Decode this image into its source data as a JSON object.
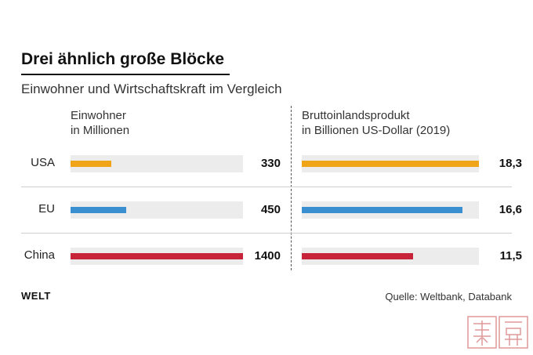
{
  "title": "Drei ähnlich große Blöcke",
  "subtitle": "Einwohner und Wirtschaftskraft im Vergleich",
  "brand": "WELT",
  "source": "Quelle: Weltbank, Databank",
  "colors": {
    "USA": "#f0a418",
    "EU": "#3a8fd1",
    "China": "#c7243a",
    "track": "#ececec"
  },
  "chart_data": [
    {
      "type": "bar",
      "orientation": "horizontal",
      "header_line1": "Einwohner",
      "header_line2": "in Millionen",
      "categories": [
        "USA",
        "EU",
        "China"
      ],
      "values": [
        330,
        450,
        1400
      ],
      "value_labels": [
        "330",
        "450",
        "1400"
      ],
      "xlim": [
        0,
        1400
      ]
    },
    {
      "type": "bar",
      "orientation": "horizontal",
      "header_line1": "Bruttoinlandsprodukt",
      "header_line2": "in Billionen US-Dollar (2019)",
      "categories": [
        "USA",
        "EU",
        "China"
      ],
      "values": [
        18.3,
        16.6,
        11.5
      ],
      "value_labels": [
        "18,3",
        "16,6",
        "11,5"
      ],
      "xlim": [
        0,
        18.3
      ]
    }
  ]
}
